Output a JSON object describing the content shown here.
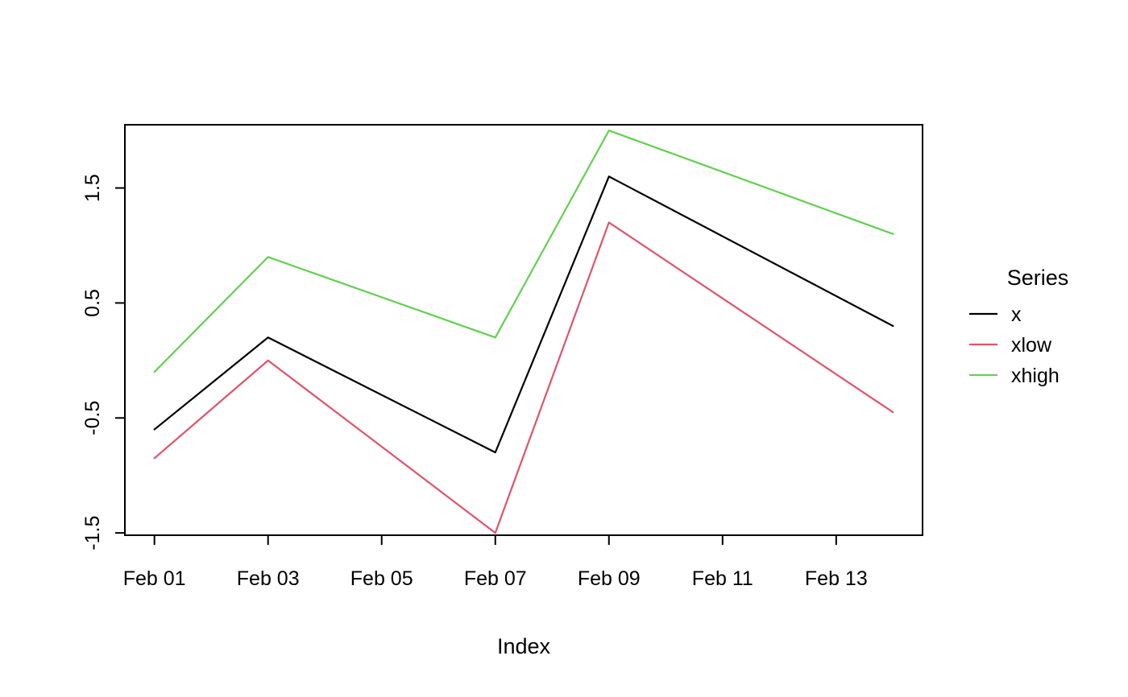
{
  "chart_data": {
    "type": "line",
    "title": "",
    "xlabel": "Index",
    "ylabel": "",
    "x": [
      1,
      3,
      7,
      9,
      14
    ],
    "x_tick_values": [
      1,
      3,
      5,
      7,
      9,
      11,
      13
    ],
    "x_tick_labels": [
      "Feb 01",
      "Feb 03",
      "Feb 05",
      "Feb 07",
      "Feb 09",
      "Feb 11",
      "Feb 13"
    ],
    "y_tick_values": [
      -1.5,
      -0.5,
      0.5,
      1.5
    ],
    "y_tick_labels": [
      "-1.5",
      "-0.5",
      "0.5",
      "1.5"
    ],
    "xlim": [
      0.48,
      14.52
    ],
    "ylim": [
      -1.52,
      2.05
    ],
    "series": [
      {
        "name": "x",
        "color": "#000000",
        "values": [
          -0.6,
          0.2,
          -0.8,
          1.6,
          0.3
        ]
      },
      {
        "name": "xlow",
        "color": "#df536b",
        "values": [
          -0.85,
          0.0,
          -1.5,
          1.2,
          -0.45
        ]
      },
      {
        "name": "xhigh",
        "color": "#61d04f",
        "values": [
          -0.1,
          0.9,
          0.2,
          2.0,
          1.1
        ]
      }
    ],
    "legend": {
      "title": "Series",
      "entries": [
        "x",
        "xlow",
        "xhigh"
      ],
      "position": "right"
    },
    "grid": false,
    "background": "#ffffff",
    "text_color": "#000000"
  }
}
